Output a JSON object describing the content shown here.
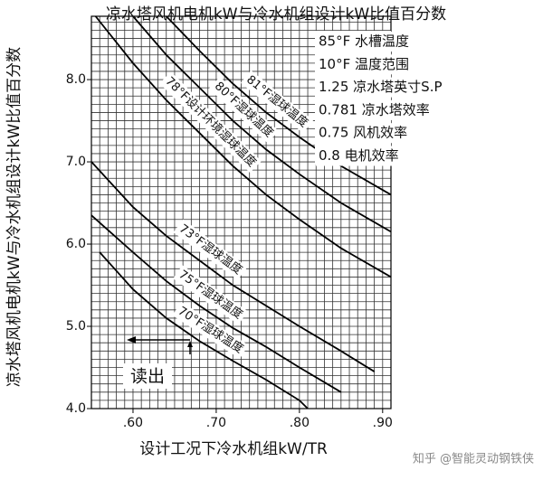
{
  "chart_data": {
    "type": "line",
    "title": "凉水塔风机电机kW与冷水机组设计kW比值百分数",
    "y_label": "凉水塔风机电机kW与冷水机组设计kW比值百分数",
    "x_label": "设计工况下冷水机组kW/TR",
    "conditions": [
      "85°F 水槽温度",
      "10°F 温度范围",
      "1.25 凉水塔英寸S.P",
      "0.781 凉水塔效率",
      "0.75 风机效率",
      "0.8 电机效率"
    ],
    "annotation": "读出",
    "watermark": "知乎 @智能灵动钢铁侠",
    "xlim": [
      0.55,
      0.91
    ],
    "ylim": [
      4.0,
      8.77
    ],
    "xticks": [
      {
        "value": 0.6,
        "label": ".60"
      },
      {
        "value": 0.7,
        "label": ".70"
      },
      {
        "value": 0.8,
        "label": ".80"
      },
      {
        "value": 0.9,
        "label": ".90"
      }
    ],
    "yticks": [
      {
        "value": 4,
        "label": "4.0"
      },
      {
        "value": 5,
        "label": "5.0"
      },
      {
        "value": 6,
        "label": "6.0"
      },
      {
        "value": 7,
        "label": "7.0"
      },
      {
        "value": 8,
        "label": "8.0"
      }
    ],
    "x_minor_ticks": [
      0.56,
      0.57,
      0.58,
      0.59,
      0.6,
      0.61,
      0.62,
      0.63,
      0.64,
      0.65,
      0.66,
      0.67,
      0.68,
      0.69,
      0.7,
      0.71,
      0.72,
      0.73,
      0.74,
      0.75,
      0.76,
      0.77,
      0.78,
      0.79,
      0.8,
      0.81,
      0.82,
      0.83,
      0.84,
      0.85,
      0.86,
      0.87,
      0.88,
      0.89,
      0.9,
      0.91
    ],
    "y_minor_ticks": [
      4.1,
      4.2,
      4.3,
      4.4,
      4.5,
      4.6,
      4.7,
      4.8,
      4.9,
      5.0,
      5.1,
      5.2,
      5.3,
      5.4,
      5.5,
      5.6,
      5.7,
      5.8,
      5.9,
      6.0,
      6.1,
      6.2,
      6.3,
      6.4,
      6.5,
      6.6,
      6.7,
      6.8,
      6.9,
      7.0,
      7.1,
      7.2,
      7.3,
      7.4,
      7.5,
      7.6,
      7.7,
      7.8,
      7.9,
      8.0,
      8.1,
      8.2,
      8.3,
      8.4,
      8.5,
      8.6,
      8.7
    ],
    "grid": true,
    "series": [
      {
        "name": "81°F湿球温度",
        "color": "#000000",
        "x": [
          0.64,
          0.68,
          0.72,
          0.76,
          0.8,
          0.85,
          0.91
        ],
        "values": [
          8.77,
          8.35,
          7.95,
          7.6,
          7.3,
          6.95,
          6.6
        ]
      },
      {
        "name": "80°F湿球温度",
        "color": "#000000",
        "x": [
          0.6,
          0.64,
          0.68,
          0.72,
          0.76,
          0.8,
          0.85,
          0.91
        ],
        "values": [
          8.77,
          8.3,
          7.9,
          7.5,
          7.15,
          6.85,
          6.5,
          6.15
        ]
      },
      {
        "name": "78°F设计环境湿球温度",
        "color": "#000000",
        "x": [
          0.555,
          0.6,
          0.64,
          0.68,
          0.72,
          0.76,
          0.8,
          0.85,
          0.91
        ],
        "values": [
          8.77,
          8.2,
          7.75,
          7.35,
          6.95,
          6.6,
          6.3,
          5.95,
          5.6
        ]
      },
      {
        "name": "73°F湿球温度",
        "color": "#000000",
        "x": [
          0.55,
          0.6,
          0.64,
          0.68,
          0.72,
          0.76,
          0.8,
          0.85,
          0.89
        ],
        "values": [
          7.0,
          6.45,
          6.1,
          5.8,
          5.5,
          5.25,
          5.0,
          4.7,
          4.45
        ]
      },
      {
        "name": "75°F湿球温度",
        "color": "#000000",
        "x": [
          0.55,
          0.6,
          0.64,
          0.68,
          0.72,
          0.76,
          0.8,
          0.85
        ],
        "values": [
          6.35,
          5.9,
          5.55,
          5.25,
          4.98,
          4.75,
          4.5,
          4.2
        ]
      },
      {
        "name": "70°F湿球温度",
        "color": "#000000",
        "x": [
          0.56,
          0.6,
          0.64,
          0.68,
          0.72,
          0.76,
          0.8,
          0.81
        ],
        "values": [
          5.9,
          5.45,
          5.1,
          4.82,
          4.58,
          4.35,
          4.1,
          4.0
        ]
      }
    ]
  }
}
